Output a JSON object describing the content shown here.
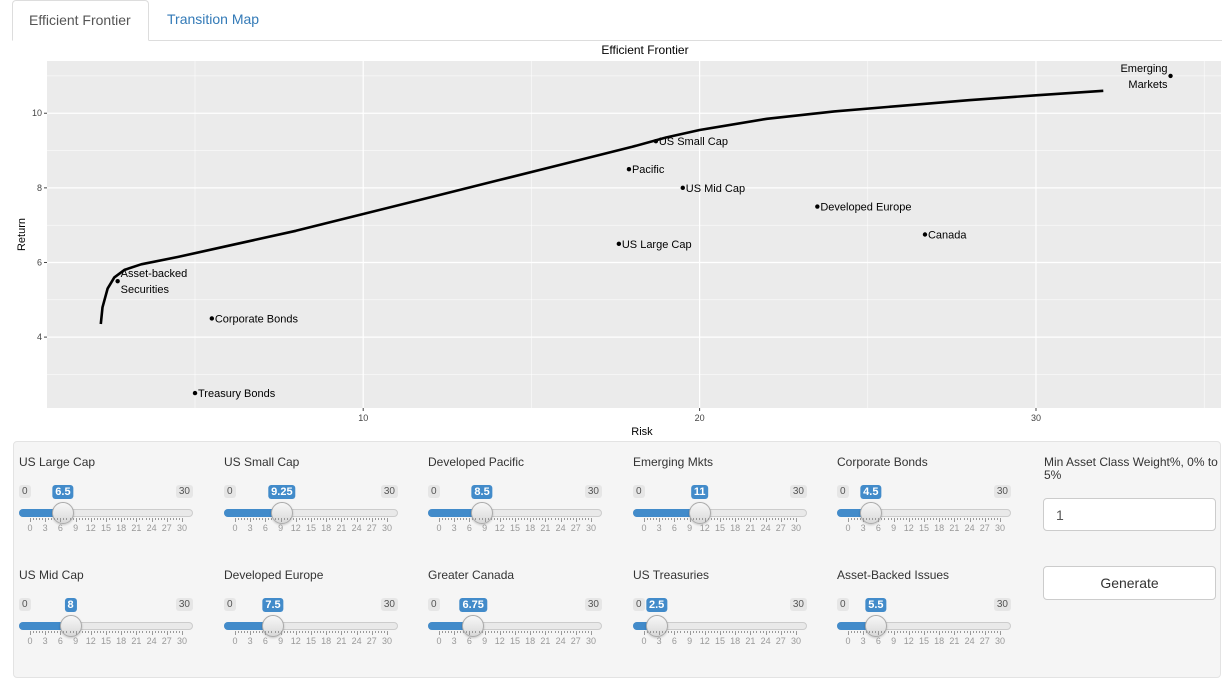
{
  "tabs": [
    {
      "label": "Efficient Frontier",
      "active": true
    },
    {
      "label": "Transition Map",
      "active": false
    }
  ],
  "chart_data": {
    "type": "scatter",
    "title": "Efficient Frontier",
    "xlabel": "Risk",
    "ylabel": "Return",
    "xlim": [
      0.6,
      35.5
    ],
    "ylim": [
      2.1,
      11.4
    ],
    "xticks": [
      10,
      20,
      30
    ],
    "yticks": [
      4,
      6,
      8,
      10
    ],
    "grid": true,
    "background": "#ebebeb",
    "points": [
      {
        "label": "US Small Cap",
        "x": 18.7,
        "y": 9.25,
        "anchor": "start"
      },
      {
        "label": "Pacific",
        "x": 17.9,
        "y": 8.5,
        "anchor": "start"
      },
      {
        "label": "US Mid Cap",
        "x": 19.5,
        "y": 8.0,
        "anchor": "start"
      },
      {
        "label": "Developed Europe",
        "x": 23.5,
        "y": 7.5,
        "anchor": "start"
      },
      {
        "label": "Canada",
        "x": 26.7,
        "y": 6.75,
        "anchor": "start"
      },
      {
        "label": "US Large Cap",
        "x": 17.6,
        "y": 6.5,
        "anchor": "start"
      },
      {
        "label": "Asset-backed Securities",
        "lines": [
          "Asset-backed",
          "Securities"
        ],
        "x": 2.7,
        "y": 5.5,
        "anchor": "start"
      },
      {
        "label": "Corporate Bonds",
        "x": 5.5,
        "y": 4.5,
        "anchor": "start"
      },
      {
        "label": "Treasury Bonds",
        "x": 5.0,
        "y": 2.5,
        "anchor": "start"
      },
      {
        "label": "Emerging Markets",
        "lines": [
          "Emerging",
          "Markets"
        ],
        "x": 34.0,
        "y": 11.0,
        "anchor": "end"
      }
    ],
    "frontier": {
      "x": [
        2.2,
        2.25,
        2.4,
        2.6,
        2.9,
        3.4,
        4.5,
        6,
        8,
        10,
        12,
        14,
        16,
        18,
        19,
        20,
        22,
        24,
        26,
        28,
        30,
        32
      ],
      "y": [
        4.35,
        4.8,
        5.3,
        5.6,
        5.8,
        5.95,
        6.15,
        6.45,
        6.85,
        7.3,
        7.75,
        8.2,
        8.65,
        9.1,
        9.35,
        9.55,
        9.85,
        10.05,
        10.2,
        10.35,
        10.48,
        10.6
      ]
    }
  },
  "sliders": [
    {
      "label": "US Large Cap",
      "min": 0,
      "max": 30,
      "value": 6.5
    },
    {
      "label": "US Small Cap",
      "min": 0,
      "max": 30,
      "value": 9.25
    },
    {
      "label": "Developed Pacific",
      "min": 0,
      "max": 30,
      "value": 8.5
    },
    {
      "label": "Emerging Mkts",
      "min": 0,
      "max": 30,
      "value": 11
    },
    {
      "label": "Corporate Bonds",
      "min": 0,
      "max": 30,
      "value": 4.5
    },
    {
      "label": "US Mid Cap",
      "min": 0,
      "max": 30,
      "value": 8
    },
    {
      "label": "Developed Europe",
      "min": 0,
      "max": 30,
      "value": 7.5
    },
    {
      "label": "Greater Canada",
      "min": 0,
      "max": 30,
      "value": 6.75
    },
    {
      "label": "US Treasuries",
      "min": 0,
      "max": 30,
      "value": 2.5
    },
    {
      "label": "Asset-Backed Issues",
      "min": 0,
      "max": 30,
      "value": 5.5
    }
  ],
  "slider_ticks": [
    0,
    3,
    6,
    9,
    12,
    15,
    18,
    21,
    24,
    27,
    30
  ],
  "min_weight": {
    "label": "Min Asset Class Weight%, 0% to 5%",
    "value": "1"
  },
  "generate_label": "Generate",
  "colors": {
    "accent": "#428bca",
    "link": "#337ab7",
    "plot_bg": "#ebebeb",
    "grid": "#ffffff"
  }
}
